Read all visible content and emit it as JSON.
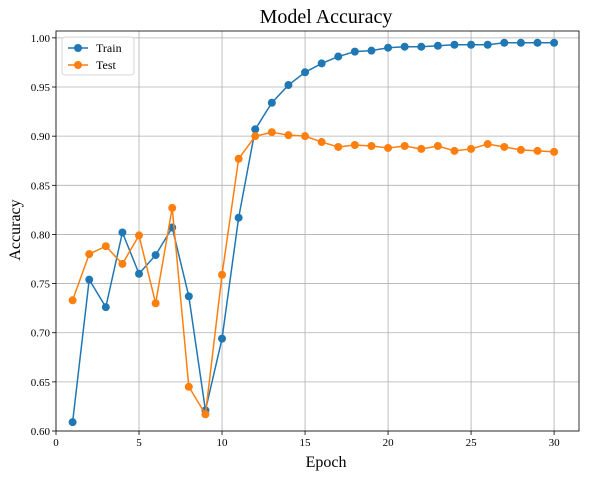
{
  "chart_data": {
    "type": "line",
    "title": "Model Accuracy",
    "xlabel": "Epoch",
    "ylabel": "Accuracy",
    "xlim": [
      0,
      31.5
    ],
    "ylim": [
      0.6,
      1.007
    ],
    "xticks": [
      0,
      5,
      10,
      15,
      20,
      25,
      30
    ],
    "yticks": [
      0.6,
      0.65,
      0.7,
      0.75,
      0.8,
      0.85,
      0.9,
      0.95,
      1.0
    ],
    "grid": true,
    "legend_position": "top-left",
    "x": [
      1,
      2,
      3,
      4,
      5,
      6,
      7,
      8,
      9,
      10,
      11,
      12,
      13,
      14,
      15,
      16,
      17,
      18,
      19,
      20,
      21,
      22,
      23,
      24,
      25,
      26,
      27,
      28,
      29,
      30
    ],
    "series": [
      {
        "name": "Train",
        "color": "#1f77b4",
        "marker": "circle",
        "values": [
          0.609,
          0.754,
          0.726,
          0.802,
          0.76,
          0.779,
          0.807,
          0.737,
          0.621,
          0.694,
          0.817,
          0.907,
          0.934,
          0.952,
          0.965,
          0.974,
          0.981,
          0.986,
          0.987,
          0.99,
          0.991,
          0.991,
          0.992,
          0.993,
          0.993,
          0.993,
          0.995,
          0.995,
          0.995,
          0.995
        ]
      },
      {
        "name": "Test",
        "color": "#ff7f0e",
        "marker": "circle",
        "values": [
          0.733,
          0.78,
          0.788,
          0.77,
          0.799,
          0.73,
          0.827,
          0.645,
          0.617,
          0.759,
          0.877,
          0.9,
          0.904,
          0.901,
          0.9,
          0.894,
          0.889,
          0.891,
          0.89,
          0.888,
          0.89,
          0.887,
          0.89,
          0.885,
          0.887,
          0.892,
          0.889,
          0.886,
          0.885,
          0.884
        ]
      }
    ]
  }
}
